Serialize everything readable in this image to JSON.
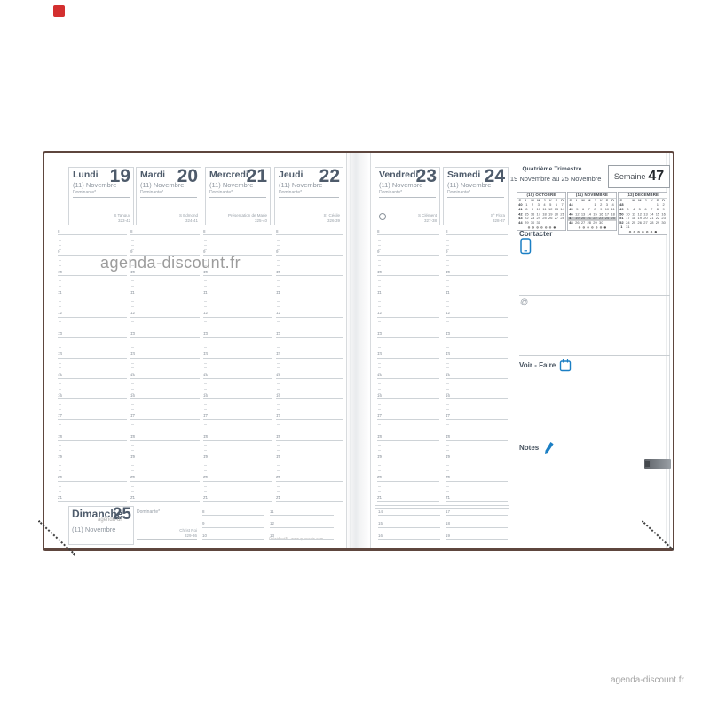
{
  "colors": {
    "ink": "#4e5b6b",
    "light_text": "#8d959e",
    "grid_line": "#ced3d7",
    "accent_blue": "#1b7fc4",
    "cover_brown": "#5e463e",
    "highlight_gray": "#c3c5c7",
    "watermark_gray": "#9c9c9c",
    "badge_red": "#d32f2f"
  },
  "watermark": {
    "center": "agenda-discount.fr",
    "corner": "agenda-discount.fr",
    "fragment": "agenda-di"
  },
  "header": {
    "trimester": "Quatrième Trimestre",
    "range": "du 19 Novembre au 25 Novembre",
    "week_label": "Semaine",
    "week_number": "47"
  },
  "days": [
    {
      "name": "Lundi",
      "num": "19",
      "month": "(11) Novembre",
      "dominante": "Dominante*",
      "saint": "S Tanguy",
      "daynum": "323-42"
    },
    {
      "name": "Mardi",
      "num": "20",
      "month": "(11) Novembre",
      "dominante": "Dominante*",
      "saint": "S Edmond",
      "daynum": "324-41"
    },
    {
      "name": "Mercredi",
      "num": "21",
      "month": "(11) Novembre",
      "dominante": "Dominante*",
      "saint": "Présentation de Marie",
      "daynum": "325-40"
    },
    {
      "name": "Jeudi",
      "num": "22",
      "month": "(11) Novembre",
      "dominante": "Dominante*",
      "saint": "S° Cécile",
      "daynum": "326-39"
    },
    {
      "name": "Vendredi",
      "num": "23",
      "month": "(11) Novembre",
      "dominante": "Dominante*",
      "saint": "S Clément",
      "daynum": "327-38",
      "moon": true
    },
    {
      "name": "Samedi",
      "num": "24",
      "month": "(11) Novembre",
      "dominante": "Dominante*",
      "saint": "S° Flora",
      "daynum": "328-37"
    }
  ],
  "hours": [
    "8",
    "9",
    "10",
    "11",
    "12",
    "13",
    "14",
    "15",
    "16",
    "17",
    "18",
    "19",
    "20",
    "21"
  ],
  "sunday": {
    "name": "Dimanche",
    "num": "25",
    "month": "(11) Novembre",
    "dominante": "Dominante*",
    "saint": "Christ Roi",
    "daynum": "329-36",
    "hour_cols": [
      [
        "8",
        "9",
        "10"
      ],
      [
        "11",
        "12",
        "13"
      ],
      [
        "14",
        "15",
        "16"
      ],
      [
        "17",
        "18",
        "19"
      ]
    ]
  },
  "minical_dow": [
    "S.",
    "L",
    "M",
    "M",
    "J",
    "V",
    "S",
    "D"
  ],
  "minicals": [
    {
      "title": "(10) OCTOBRE",
      "highlight": -1,
      "rows": [
        [
          "40",
          "1",
          "2",
          "3",
          "4",
          "5",
          "6",
          "7"
        ],
        [
          "41",
          "8",
          "9",
          "10",
          "11",
          "12",
          "13",
          "14"
        ],
        [
          "42",
          "15",
          "16",
          "17",
          "18",
          "19",
          "20",
          "21"
        ],
        [
          "43",
          "22",
          "23",
          "24",
          "25",
          "26",
          "27",
          "28"
        ],
        [
          "44",
          "29",
          "30",
          "31",
          "",
          "",
          "",
          ""
        ]
      ],
      "phases": [
        "empty",
        "empty",
        "empty",
        "empty",
        "empty",
        "empty",
        "full"
      ]
    },
    {
      "title": "(11) NOVEMBRE",
      "highlight": 3,
      "rows": [
        [
          "44",
          "",
          "",
          "",
          "1",
          "2",
          "3",
          "4"
        ],
        [
          "45",
          "5",
          "6",
          "7",
          "8",
          "9",
          "10",
          "11"
        ],
        [
          "46",
          "12",
          "13",
          "14",
          "15",
          "16",
          "17",
          "18"
        ],
        [
          "47",
          "19",
          "20",
          "21",
          "22",
          "23",
          "24",
          "25"
        ],
        [
          "48",
          "26",
          "27",
          "28",
          "29",
          "30",
          "",
          ""
        ]
      ],
      "phases": [
        "empty",
        "empty",
        "empty",
        "empty",
        "empty",
        "empty",
        "full"
      ]
    },
    {
      "title": "(12) DÉCEMBRE",
      "highlight": -1,
      "rows": [
        [
          "48",
          "",
          "",
          "",
          "",
          "",
          "1",
          "2"
        ],
        [
          "49",
          "3",
          "4",
          "5",
          "6",
          "7",
          "8",
          "9"
        ],
        [
          "50",
          "10",
          "11",
          "12",
          "13",
          "14",
          "15",
          "16"
        ],
        [
          "51",
          "17",
          "18",
          "19",
          "20",
          "21",
          "22",
          "23"
        ],
        [
          "52",
          "24",
          "25",
          "26",
          "27",
          "28",
          "29",
          "30"
        ],
        [
          "1",
          "31",
          "",
          "",
          "",
          "",
          "",
          ""
        ]
      ],
      "phases": [
        "empty",
        "empty",
        "empty",
        "empty",
        "empty",
        "empty",
        "full"
      ]
    }
  ],
  "sections": {
    "contacter": "Contacter",
    "at": "@",
    "voir_faire": "Voir - Faire",
    "notes": "Notes"
  },
  "footer": {
    "brand": "Président® - www.quovadis.com"
  }
}
